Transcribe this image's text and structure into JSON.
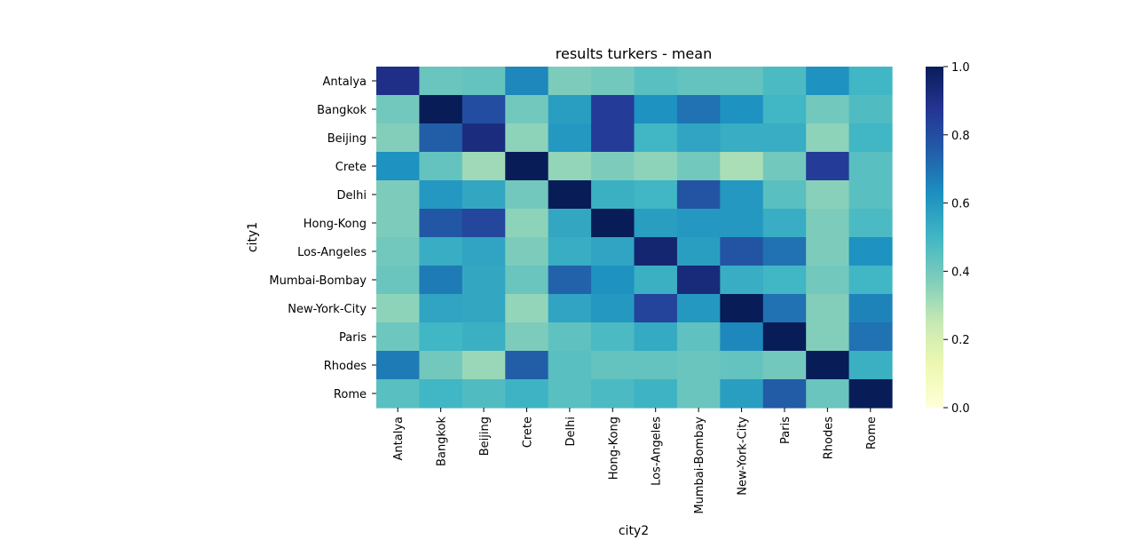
{
  "chart_data": {
    "type": "heatmap",
    "title": "results turkers - mean",
    "xlabel": "city2",
    "ylabel": "city1",
    "x_categories": [
      "Antalya",
      "Bangkok",
      "Beijing",
      "Crete",
      "Delhi",
      "Hong-Kong",
      "Los-Angeles",
      "Mumbai-Bombay",
      "New-York-City",
      "Paris",
      "Rhodes",
      "Rome"
    ],
    "y_categories": [
      "Antalya",
      "Bangkok",
      "Beijing",
      "Crete",
      "Delhi",
      "Hong-Kong",
      "Los-Angeles",
      "Mumbai-Bombay",
      "New-York-City",
      "Paris",
      "Rhodes",
      "Rome"
    ],
    "values": [
      [
        0.9,
        0.42,
        0.43,
        0.65,
        0.38,
        0.4,
        0.45,
        0.43,
        0.43,
        0.48,
        0.62,
        0.5
      ],
      [
        0.4,
        1.0,
        0.8,
        0.4,
        0.58,
        0.85,
        0.62,
        0.7,
        0.62,
        0.5,
        0.4,
        0.47
      ],
      [
        0.37,
        0.75,
        0.92,
        0.35,
        0.6,
        0.85,
        0.5,
        0.56,
        0.53,
        0.53,
        0.35,
        0.5
      ],
      [
        0.62,
        0.43,
        0.32,
        1.0,
        0.34,
        0.38,
        0.35,
        0.4,
        0.3,
        0.4,
        0.85,
        0.45
      ],
      [
        0.38,
        0.6,
        0.55,
        0.4,
        1.0,
        0.52,
        0.5,
        0.78,
        0.6,
        0.45,
        0.36,
        0.45
      ],
      [
        0.38,
        0.77,
        0.82,
        0.35,
        0.55,
        1.0,
        0.58,
        0.6,
        0.6,
        0.53,
        0.38,
        0.48
      ],
      [
        0.4,
        0.53,
        0.56,
        0.38,
        0.53,
        0.56,
        0.95,
        0.58,
        0.78,
        0.7,
        0.38,
        0.62
      ],
      [
        0.42,
        0.68,
        0.55,
        0.42,
        0.74,
        0.62,
        0.52,
        0.93,
        0.53,
        0.5,
        0.4,
        0.5
      ],
      [
        0.35,
        0.56,
        0.55,
        0.34,
        0.56,
        0.6,
        0.83,
        0.6,
        1.0,
        0.7,
        0.37,
        0.66
      ],
      [
        0.41,
        0.5,
        0.52,
        0.38,
        0.44,
        0.48,
        0.54,
        0.44,
        0.65,
        1.0,
        0.37,
        0.7
      ],
      [
        0.68,
        0.4,
        0.33,
        0.75,
        0.45,
        0.43,
        0.43,
        0.42,
        0.43,
        0.4,
        1.0,
        0.52
      ],
      [
        0.45,
        0.5,
        0.47,
        0.51,
        0.45,
        0.48,
        0.51,
        0.42,
        0.58,
        0.76,
        0.42,
        1.0
      ]
    ],
    "colormap": "YlGnBu",
    "vmin": 0.0,
    "vmax": 1.0,
    "colorbar_ticks": [
      "0.0",
      "0.2",
      "0.4",
      "0.6",
      "0.8",
      "1.0"
    ],
    "colorbar_tick_values": [
      0.0,
      0.2,
      0.4,
      0.6,
      0.8,
      1.0
    ],
    "colorbar_stops": [
      "#ffffd9",
      "#edf8b1",
      "#c7e9b4",
      "#7fcdbb",
      "#41b6c4",
      "#1d91c0",
      "#225ea8",
      "#253494",
      "#081d58"
    ]
  }
}
